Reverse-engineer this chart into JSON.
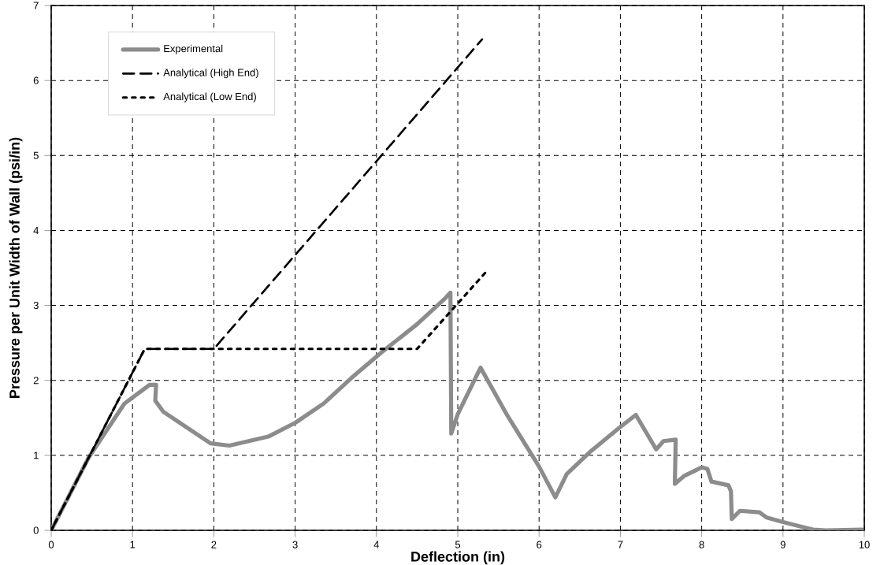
{
  "chart_data": {
    "type": "line",
    "xlabel": "Deflection (in)",
    "ylabel": "Pressure per Unit Width of Wall (psi/in)",
    "xlim": [
      0,
      10
    ],
    "ylim": [
      0,
      7
    ],
    "xticks": [
      0,
      1,
      2,
      3,
      4,
      5,
      6,
      7,
      8,
      9,
      10
    ],
    "yticks": [
      0,
      1,
      2,
      3,
      4,
      5,
      6,
      7
    ],
    "grid": true,
    "legend": "top left",
    "series": [
      {
        "name": "Experimental",
        "color": "#8c8c8c",
        "line_style": "solid",
        "x": [
          0,
          0.46,
          0.9,
          1.21,
          1.29,
          1.28,
          1.38,
          1.96,
          2.19,
          2.67,
          3.01,
          3.35,
          3.69,
          4.07,
          4.5,
          4.85,
          4.91,
          4.92,
          5.0,
          5.28,
          5.6,
          6.0,
          6.2,
          6.34,
          6.62,
          7.0,
          7.19,
          7.44,
          7.53,
          7.68,
          7.67,
          7.79,
          8.0,
          8.07,
          8.12,
          8.33,
          8.36,
          8.37,
          8.47,
          8.71,
          8.8,
          9.0,
          9.37,
          9.53,
          9.97
        ],
        "values": [
          0,
          0.97,
          1.69,
          1.94,
          1.94,
          1.73,
          1.58,
          1.16,
          1.13,
          1.25,
          1.44,
          1.69,
          2.03,
          2.38,
          2.75,
          3.1,
          3.17,
          1.29,
          1.55,
          2.17,
          1.55,
          0.85,
          0.44,
          0.75,
          1.04,
          1.38,
          1.54,
          1.08,
          1.19,
          1.21,
          0.62,
          0.73,
          0.84,
          0.82,
          0.65,
          0.6,
          0.52,
          0.15,
          0.26,
          0.24,
          0.17,
          0.11,
          0.01,
          0,
          0.01
        ]
      },
      {
        "name": "Analytical (High End)",
        "color": "#000000",
        "line_style": "dashed",
        "x": [
          0,
          1.15,
          2.0,
          5.3
        ],
        "values": [
          0,
          2.42,
          2.42,
          6.55
        ]
      },
      {
        "name": "Analytical (Low End)",
        "color": "#000000",
        "line_style": "dotted",
        "x": [
          0,
          1.15,
          4.5,
          5.35
        ],
        "values": [
          0,
          2.42,
          2.42,
          3.45
        ]
      }
    ]
  }
}
